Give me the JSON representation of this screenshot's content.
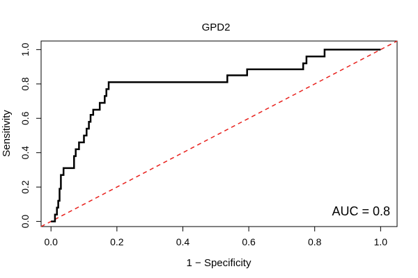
{
  "chart_data": {
    "type": "line",
    "title": "GPD2",
    "xlabel": "1 − Specificity",
    "ylabel": "Sensitivity",
    "xlim": [
      -0.03,
      1.05
    ],
    "ylim": [
      -0.03,
      1.05
    ],
    "xticks": [
      0.0,
      0.2,
      0.4,
      0.6,
      0.8,
      1.0
    ],
    "yticks": [
      0.0,
      0.2,
      0.4,
      0.6,
      0.8,
      1.0
    ],
    "xtick_labels": [
      "0.0",
      "0.2",
      "0.4",
      "0.6",
      "0.8",
      "1.0"
    ],
    "ytick_labels": [
      "0.0",
      "0.2",
      "0.4",
      "0.6",
      "0.8",
      "1.0"
    ],
    "grid": false,
    "legend": "none",
    "annotation": "AUC = 0.8",
    "series": [
      {
        "color": "#000000",
        "style": "solid-step",
        "x": [
          0.0,
          0.012,
          0.012,
          0.018,
          0.018,
          0.022,
          0.022,
          0.026,
          0.026,
          0.03,
          0.03,
          0.038,
          0.038,
          0.07,
          0.07,
          0.075,
          0.075,
          0.085,
          0.085,
          0.1,
          0.1,
          0.108,
          0.108,
          0.115,
          0.115,
          0.12,
          0.12,
          0.128,
          0.128,
          0.148,
          0.148,
          0.163,
          0.163,
          0.168,
          0.168,
          0.175,
          0.175,
          0.535,
          0.535,
          0.595,
          0.595,
          0.765,
          0.765,
          0.775,
          0.775,
          0.83,
          0.83,
          1.0
        ],
        "y": [
          0.0,
          0.0,
          0.04,
          0.04,
          0.08,
          0.08,
          0.12,
          0.12,
          0.19,
          0.19,
          0.27,
          0.27,
          0.31,
          0.31,
          0.38,
          0.38,
          0.42,
          0.42,
          0.46,
          0.46,
          0.5,
          0.5,
          0.54,
          0.54,
          0.58,
          0.58,
          0.62,
          0.62,
          0.65,
          0.65,
          0.69,
          0.69,
          0.73,
          0.73,
          0.77,
          0.77,
          0.81,
          0.81,
          0.85,
          0.85,
          0.885,
          0.885,
          0.92,
          0.92,
          0.96,
          0.96,
          1.0,
          1.0
        ]
      },
      {
        "color": "#e8201c",
        "style": "dashed-diagonal",
        "x": [
          -0.03,
          1.05
        ],
        "y": [
          -0.03,
          1.05
        ]
      }
    ]
  }
}
